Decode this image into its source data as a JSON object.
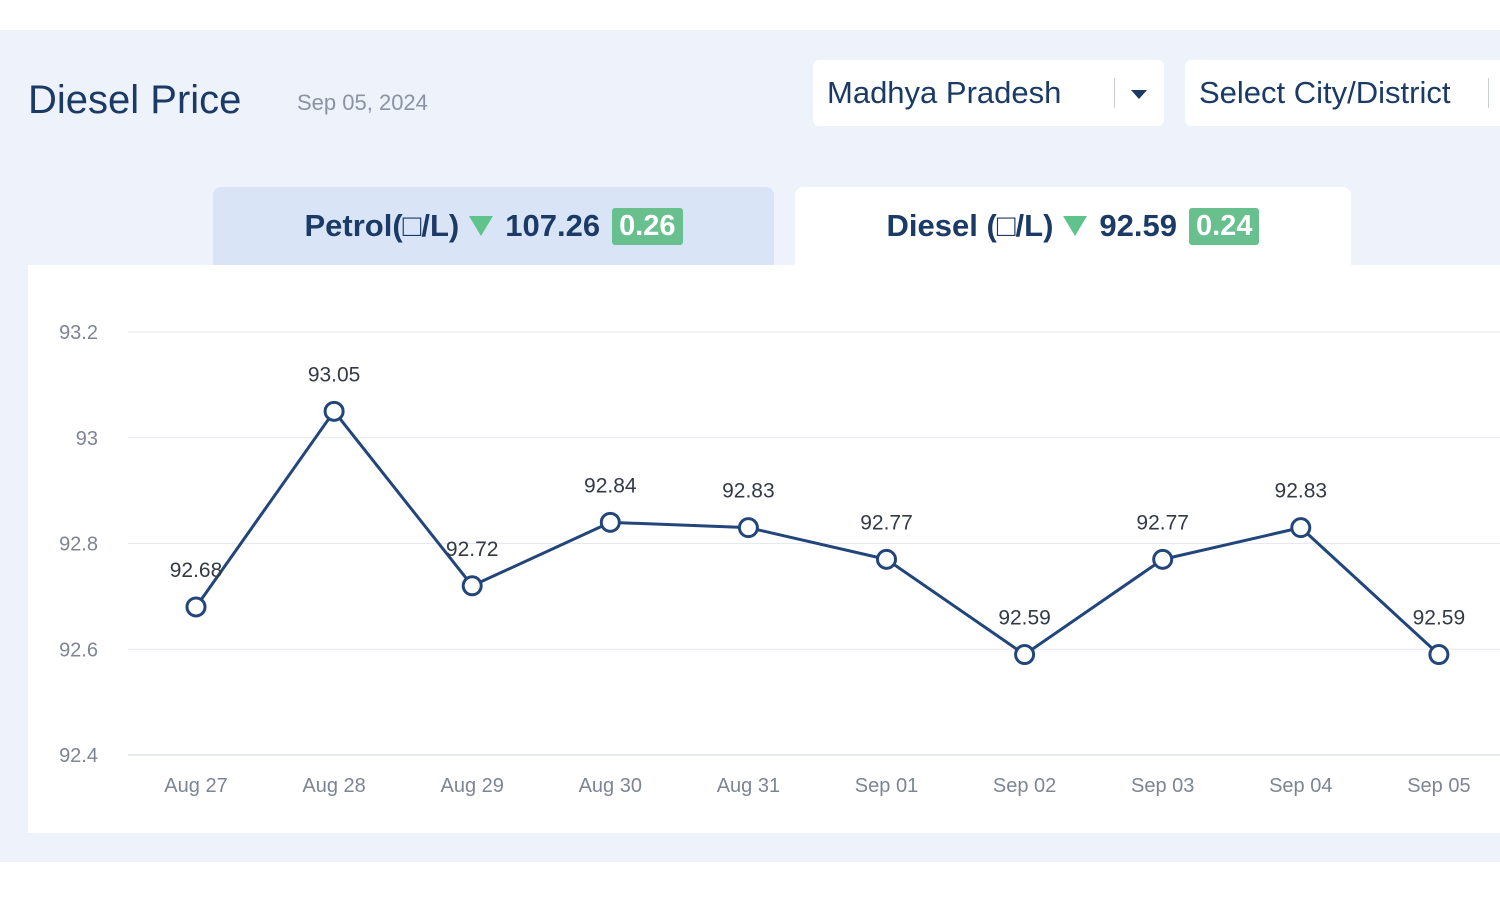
{
  "header": {
    "title": "Diesel Price",
    "date": "Sep 05, 2024"
  },
  "state_select": {
    "value": "Madhya Pradesh"
  },
  "city_select": {
    "placeholder": "Select City/District"
  },
  "tabs": [
    {
      "label": "Petrol(□/L)",
      "price": "107.26",
      "change": "0.26",
      "active": false
    },
    {
      "label": "Diesel (□/L)",
      "price": "92.59",
      "change": "0.24",
      "active": true
    }
  ],
  "colors": {
    "accent": "#1b3a66",
    "down": "#5fc38c",
    "change_badge": "#67c08d",
    "line": "#22457a"
  },
  "chart_data": {
    "type": "line",
    "title": "",
    "xlabel": "",
    "ylabel": "",
    "categories": [
      "Aug 27",
      "Aug 28",
      "Aug 29",
      "Aug 30",
      "Aug 31",
      "Sep 01",
      "Sep 02",
      "Sep 03",
      "Sep 04",
      "Sep 05"
    ],
    "series": [
      {
        "name": "Diesel",
        "values": [
          92.68,
          93.05,
          92.72,
          92.84,
          92.83,
          92.77,
          92.59,
          92.77,
          92.83,
          92.59
        ]
      }
    ],
    "data_labels": [
      "92.68",
      "93.05",
      "92.72",
      "92.84",
      "92.83",
      "92.77",
      "92.59",
      "92.77",
      "92.83",
      "92.59"
    ],
    "ylim": [
      92.4,
      93.2
    ],
    "yticks": [
      92.4,
      92.6,
      92.8,
      93,
      93.2
    ],
    "ytick_labels": [
      "92.4",
      "92.6",
      "92.8",
      "93",
      "93.2"
    ],
    "grid": true,
    "legend": "none"
  }
}
